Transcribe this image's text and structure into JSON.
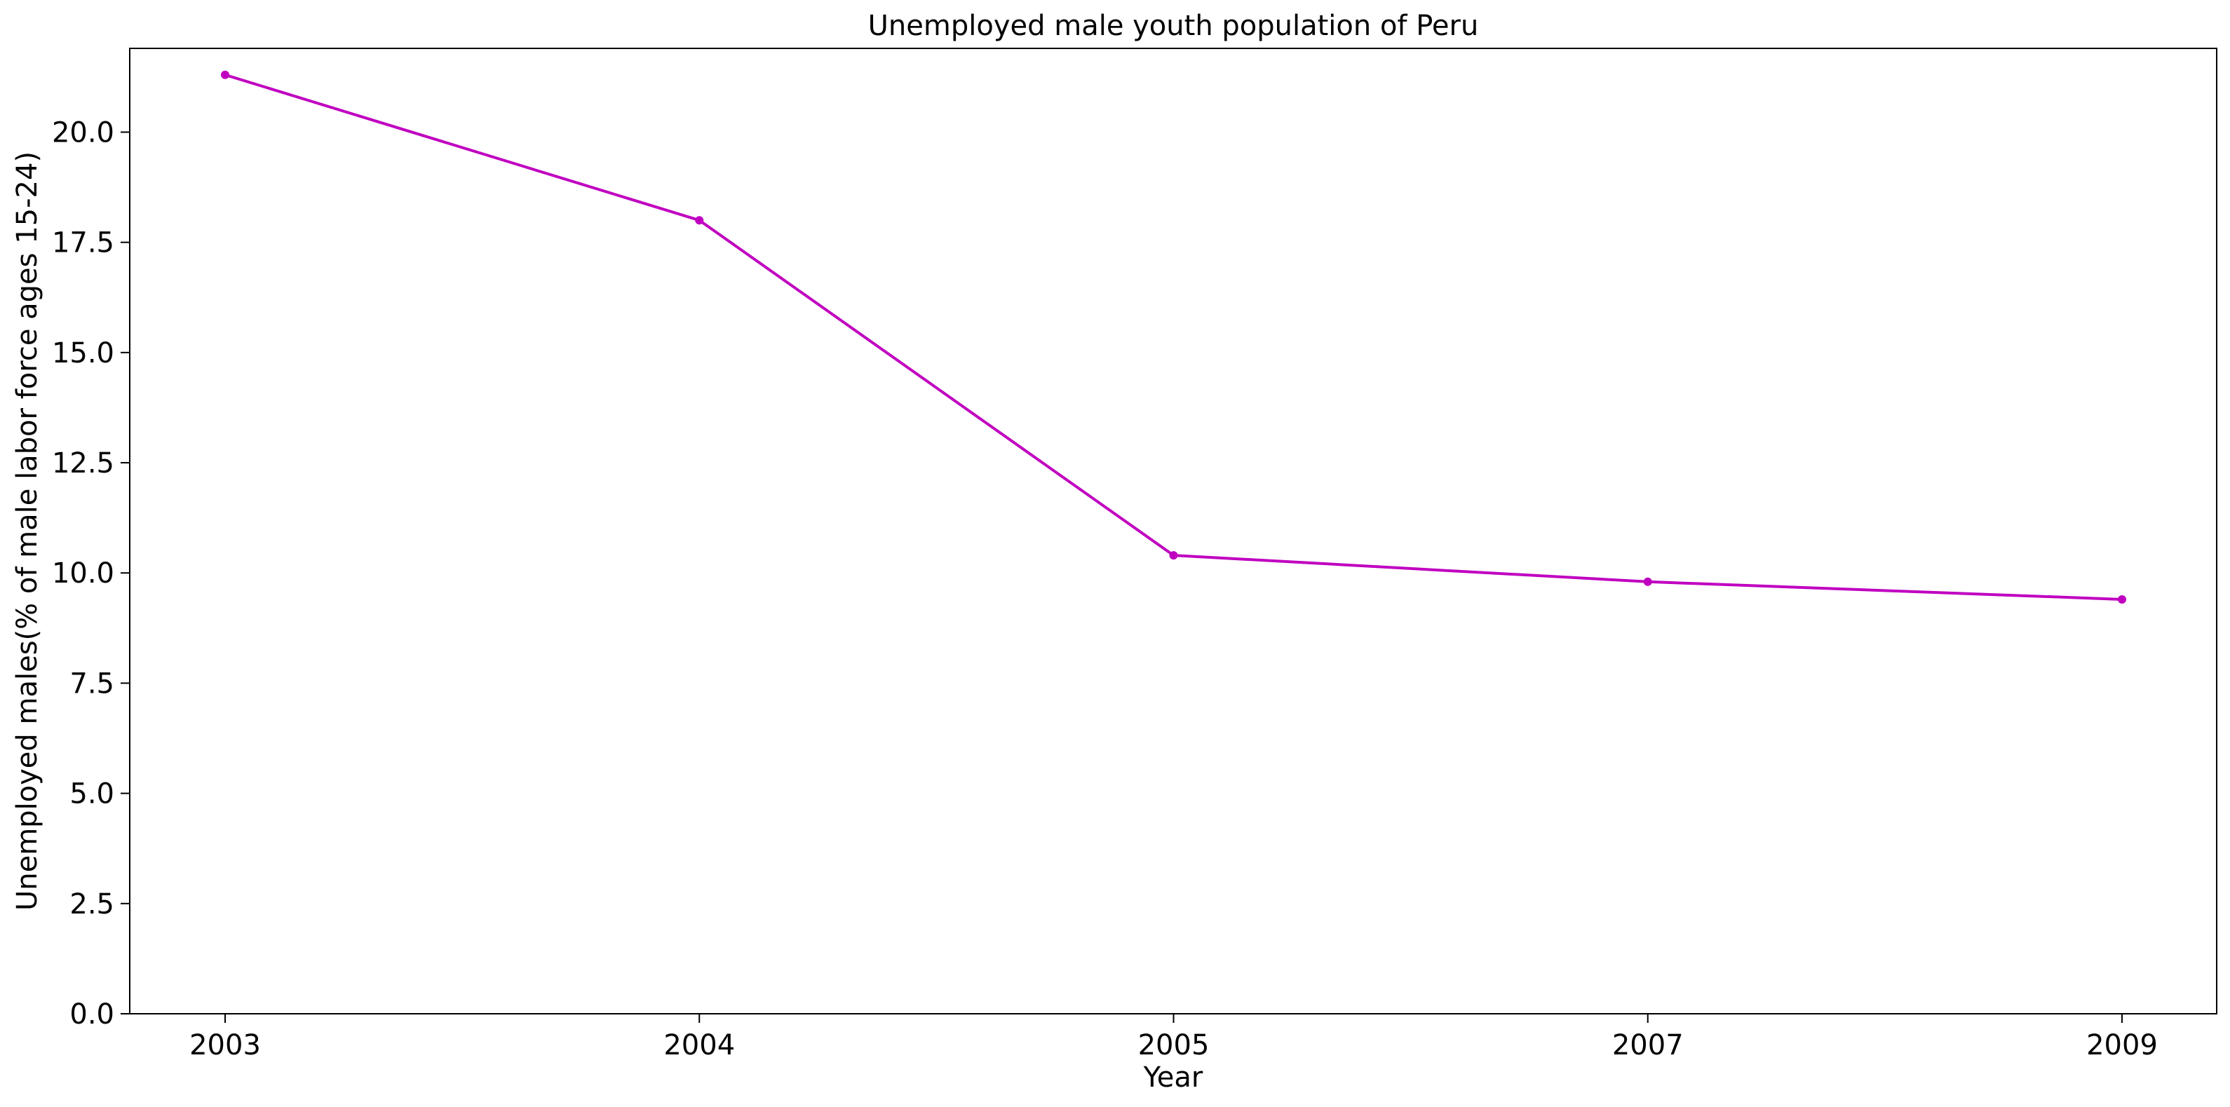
{
  "chart_data": {
    "type": "line",
    "title": "Unemployed male youth population of Peru",
    "xlabel": "Year",
    "ylabel": "Unemployed males(% of male labor force ages 15-24)",
    "categories": [
      "2003",
      "2004",
      "2005",
      "2007",
      "2009"
    ],
    "series": [
      {
        "values": [
          21.3,
          18.0,
          10.4,
          9.8,
          9.4
        ],
        "color": "#c000c0",
        "marker": "dot"
      }
    ],
    "ylim": [
      0,
      21.9
    ],
    "yticks": [
      0.0,
      2.5,
      5.0,
      7.5,
      10.0,
      12.5,
      15.0,
      17.5,
      20.0
    ],
    "ytick_labels": [
      "0.0",
      "2.5",
      "5.0",
      "7.5",
      "10.0",
      "12.5",
      "15.0",
      "17.5",
      "20.0"
    ],
    "grid": false,
    "legend": "none"
  }
}
